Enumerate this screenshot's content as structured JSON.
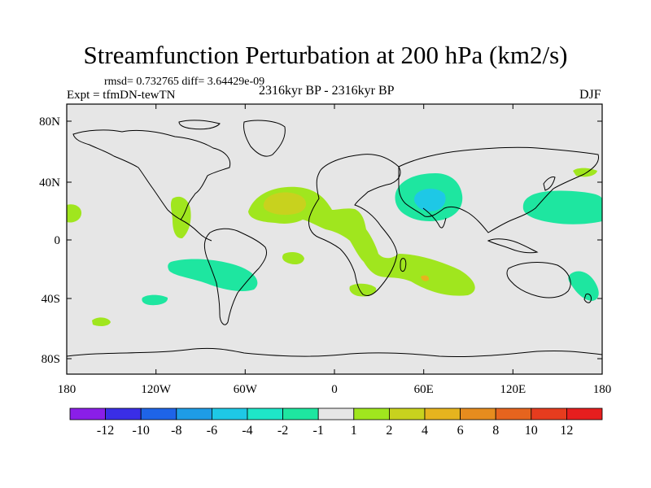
{
  "title": "Streamfunction Perturbation at 200 hPa (km2/s)",
  "stats": "rmsd= 0.732765 diff= 3.64429e-09",
  "experiment": "Expt = tfmDN-tewTN",
  "period": "2316kyr BP - 2316kyr BP",
  "season": "DJF",
  "lat_ticks": [
    "80N",
    "40N",
    "0",
    "40S",
    "80S"
  ],
  "lon_ticks": [
    "180",
    "120W",
    "60W",
    "0",
    "60E",
    "120E",
    "180"
  ],
  "colorbar": {
    "labels": [
      "-12",
      "-10",
      "-8",
      "-6",
      "-4",
      "-2",
      "-1",
      "1",
      "2",
      "4",
      "6",
      "8",
      "10",
      "12"
    ],
    "colors": [
      "#8a1ee8",
      "#3a2ee6",
      "#1e64e8",
      "#1e9ce6",
      "#1ec8e6",
      "#1ee6c8",
      "#1ee6a0",
      "#e6e6e6",
      "#a0e61e",
      "#c8d21e",
      "#e6b41e",
      "#e68c1e",
      "#e6641e",
      "#e63c1e",
      "#e61e1e"
    ]
  },
  "map_colors": {
    "background": "#e6e6e6",
    "coast": "#000000"
  }
}
